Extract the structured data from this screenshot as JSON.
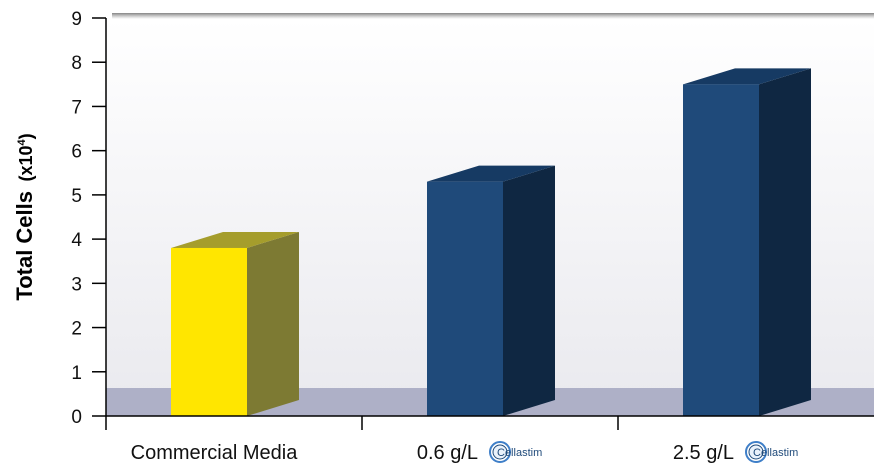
{
  "chart_data": {
    "type": "bar",
    "categories": [
      "Commercial Media",
      "0.6 g/L",
      "2.5 g/L"
    ],
    "values": [
      3.8,
      5.3,
      7.5
    ],
    "bar_colors": [
      "#ffe600",
      "#1f4a7a",
      "#1f4a7a"
    ],
    "side_colors": [
      "#7d7a33",
      "#0f2742",
      "#0f2742"
    ],
    "top_colors": [
      "#a59d2c",
      "#163a63",
      "#163a63"
    ],
    "category_logos": [
      "",
      "Cellastim",
      "Cellastim"
    ],
    "ylabel_main": "Total Cells",
    "ylabel_unit": "(x10",
    "ylabel_exp": "4",
    "ylabel_close": ")",
    "ylim": [
      0,
      9
    ],
    "yticks": [
      0,
      1,
      2,
      3,
      4,
      5,
      6,
      7,
      8,
      9
    ],
    "grid": false,
    "floor_color": "#aeb0c7",
    "background_gradient": [
      "#ffffff",
      "#e9e9ee"
    ]
  }
}
